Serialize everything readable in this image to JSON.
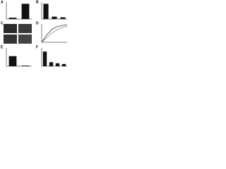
{
  "panel_labels": [
    "A",
    "B",
    "C",
    "D",
    "E",
    "F"
  ],
  "chart_data": [
    {
      "type": "bar",
      "categories": [
        null,
        null
      ],
      "values": [
        8,
        90
      ],
      "color": "#111111",
      "ylim": [
        0,
        100
      ]
    },
    {
      "type": "bar",
      "categories": [
        null,
        null,
        null
      ],
      "values": [
        90,
        14,
        10
      ],
      "color": "#111111",
      "ylim": [
        0,
        100
      ]
    },
    {
      "type": "line",
      "x": [
        0,
        2,
        4,
        6,
        8,
        10
      ],
      "xlim": [
        0,
        10
      ],
      "ylim": [
        0,
        100
      ],
      "series": [
        {
          "name": null,
          "color": "#111111",
          "values": [
            0,
            40,
            70,
            85,
            92,
            95
          ]
        },
        {
          "name": null,
          "color": "#777777",
          "values": [
            0,
            25,
            50,
            68,
            80,
            88
          ]
        }
      ]
    },
    {
      "type": "bar",
      "categories": [
        null,
        null
      ],
      "values": [
        55,
        3
      ],
      "color": "#111111",
      "ylim": [
        0,
        100
      ]
    },
    {
      "type": "bar",
      "categories": [
        null,
        null,
        null,
        null
      ],
      "values": [
        80,
        22,
        16,
        12
      ],
      "color": "#111111",
      "ylim": [
        0,
        100
      ]
    }
  ]
}
